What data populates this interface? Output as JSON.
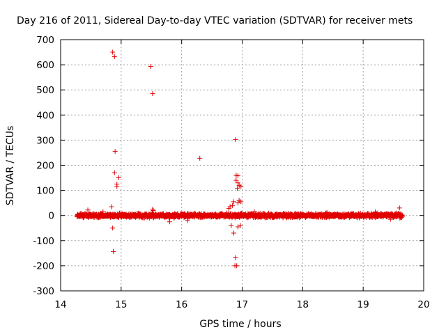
{
  "chart_data": {
    "type": "scatter",
    "title": "Day 216 of 2011, Sidereal Day-to-day VTEC variation (SDTVAR) for receiver mets",
    "xlabel": "GPS time / hours",
    "ylabel": "SDTVAR / TECUs",
    "xlim": [
      14,
      20
    ],
    "ylim": [
      -300,
      700
    ],
    "xticks": [
      "14",
      "15",
      "16",
      "17",
      "18",
      "19",
      "20"
    ],
    "yticks": [
      "-300",
      "-200",
      "-100",
      "0",
      "100",
      "200",
      "300",
      "400",
      "500",
      "600",
      "700"
    ],
    "grid": true,
    "marker": "+",
    "color": "#e00000",
    "dense_band": {
      "x_start": 14.27,
      "x_end": 19.65,
      "y_center": 0,
      "y_spread": 12,
      "point_count": 1800
    },
    "series": [
      {
        "name": "SDTVAR",
        "points": [
          [
            14.86,
            650
          ],
          [
            14.89,
            632
          ],
          [
            15.49,
            593
          ],
          [
            15.52,
            485
          ],
          [
            14.9,
            255
          ],
          [
            14.89,
            170
          ],
          [
            14.96,
            150
          ],
          [
            14.93,
            125
          ],
          [
            14.93,
            115
          ],
          [
            14.84,
            35
          ],
          [
            14.86,
            -50
          ],
          [
            14.87,
            -143
          ],
          [
            15.52,
            25
          ],
          [
            15.53,
            20
          ],
          [
            16.3,
            228
          ],
          [
            16.89,
            302
          ],
          [
            16.9,
            160
          ],
          [
            16.93,
            158
          ],
          [
            16.9,
            140
          ],
          [
            16.93,
            130
          ],
          [
            16.95,
            120
          ],
          [
            16.98,
            115
          ],
          [
            16.92,
            108
          ],
          [
            16.95,
            60
          ],
          [
            16.98,
            55
          ],
          [
            16.93,
            50
          ],
          [
            16.86,
            55
          ],
          [
            16.8,
            35
          ],
          [
            16.78,
            28
          ],
          [
            16.84,
            40
          ],
          [
            16.82,
            -40
          ],
          [
            16.86,
            -70
          ],
          [
            16.93,
            -45
          ],
          [
            16.97,
            -40
          ],
          [
            16.89,
            -168
          ],
          [
            16.88,
            -200
          ],
          [
            16.91,
            -200
          ],
          [
            19.6,
            30
          ],
          [
            14.45,
            22
          ],
          [
            14.7,
            15
          ],
          [
            15.8,
            -25
          ],
          [
            16.1,
            -20
          ],
          [
            17.2,
            15
          ],
          [
            18.4,
            12
          ],
          [
            19.2,
            14
          ],
          [
            19.45,
            -15
          ]
        ]
      }
    ]
  }
}
